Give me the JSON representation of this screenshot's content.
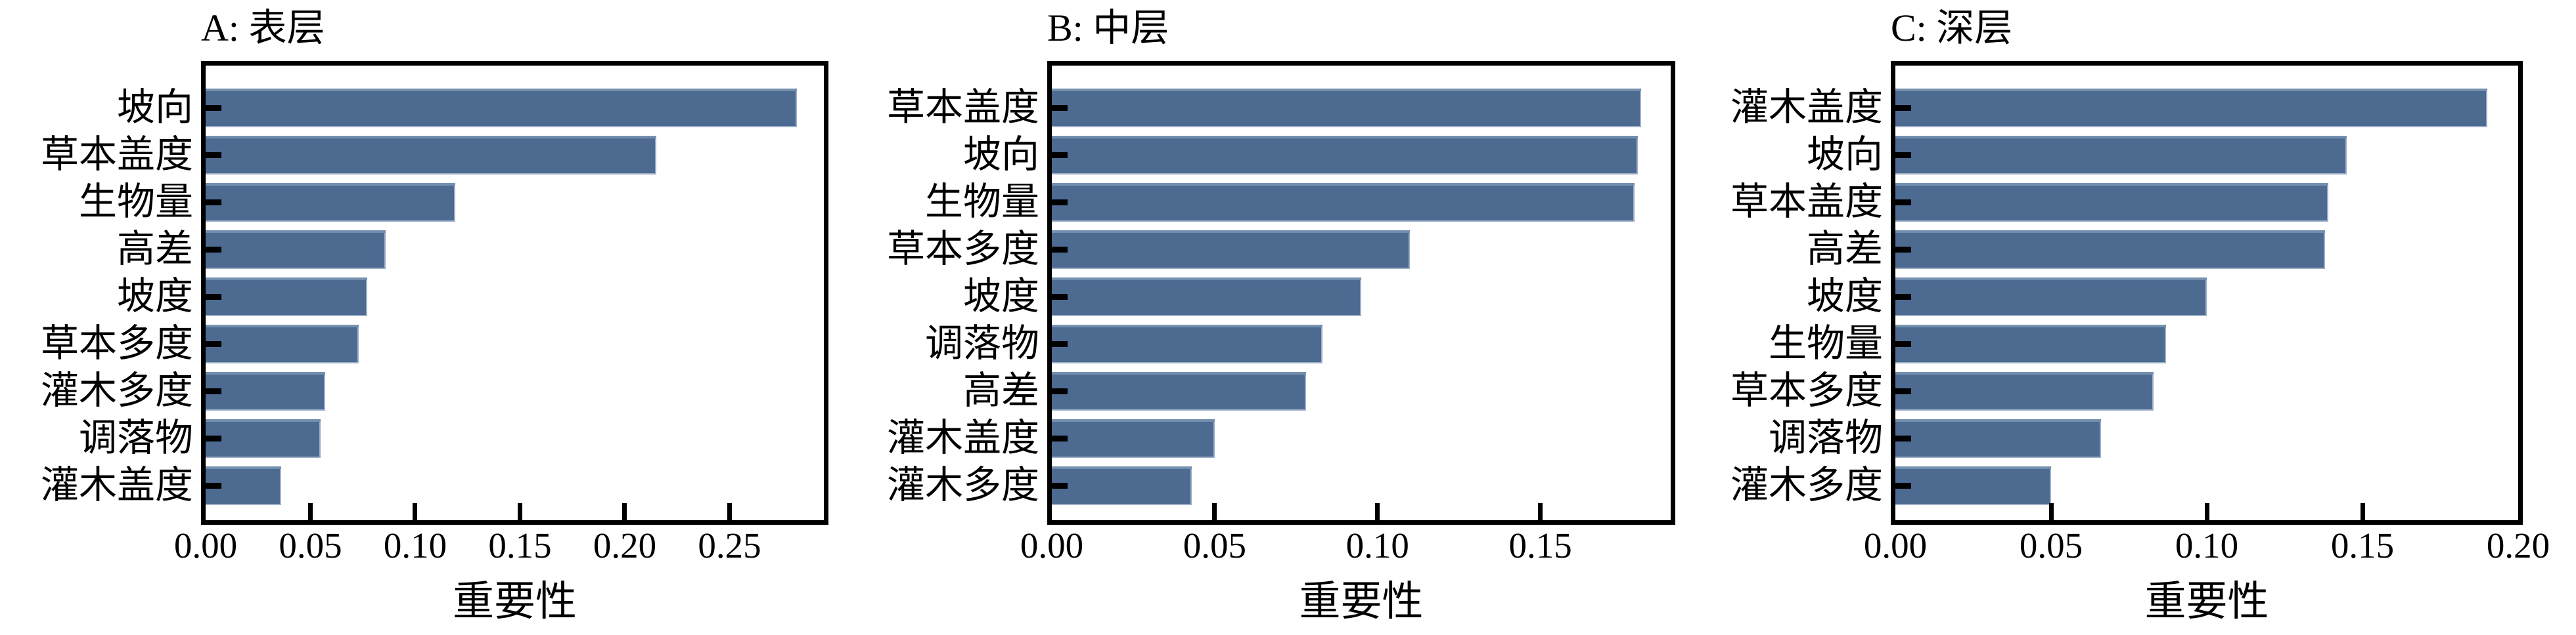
{
  "style": {
    "bar_color": "#4d6a91",
    "bar_top_highlight": "#7590af",
    "bar_edge_light": "#9dafc8",
    "axis_color": "#000000",
    "background": "#ffffff"
  },
  "chart_data": [
    {
      "type": "bar",
      "orientation": "horizontal",
      "title": "A: 表层",
      "xlabel": "重要性",
      "categories": [
        "坡向",
        "草本盖度",
        "生物量",
        "高差",
        "坡度",
        "草本多度",
        "灌木多度",
        "调落物",
        "灌木盖度"
      ],
      "values": [
        0.282,
        0.215,
        0.119,
        0.086,
        0.077,
        0.073,
        0.057,
        0.055,
        0.036
      ],
      "xlim": [
        0,
        0.295
      ],
      "xticks": [
        0,
        0.05,
        0.1,
        0.15,
        0.2,
        0.25
      ],
      "xtick_labels": [
        "0.00",
        "0.05",
        "0.10",
        "0.15",
        "0.20",
        "0.25"
      ],
      "grid": false,
      "legend": null
    },
    {
      "type": "bar",
      "orientation": "horizontal",
      "title": "B: 中层",
      "xlabel": "重要性",
      "categories": [
        "草本盖度",
        "坡向",
        "生物量",
        "草本多度",
        "坡度",
        "调落物",
        "高差",
        "灌木盖度",
        "灌木多度"
      ],
      "values": [
        0.181,
        0.18,
        0.179,
        0.11,
        0.095,
        0.083,
        0.078,
        0.05,
        0.043
      ],
      "xlim": [
        0,
        0.19
      ],
      "xticks": [
        0,
        0.05,
        0.1,
        0.15
      ],
      "xtick_labels": [
        "0.00",
        "0.05",
        "0.10",
        "0.15"
      ],
      "grid": false,
      "legend": null
    },
    {
      "type": "bar",
      "orientation": "horizontal",
      "title": "C: 深层",
      "xlabel": "重要性",
      "categories": [
        "灌木盖度",
        "坡向",
        "草本盖度",
        "高差",
        "坡度",
        "生物量",
        "草本多度",
        "调落物",
        "灌木多度"
      ],
      "values": [
        0.19,
        0.145,
        0.139,
        0.138,
        0.1,
        0.087,
        0.083,
        0.066,
        0.05
      ],
      "xlim": [
        0,
        0.2
      ],
      "xticks": [
        0,
        0.05,
        0.1,
        0.15,
        0.2
      ],
      "xtick_labels": [
        "0.00",
        "0.05",
        "0.10",
        "0.15",
        "0.20"
      ],
      "grid": false,
      "legend": null
    }
  ]
}
